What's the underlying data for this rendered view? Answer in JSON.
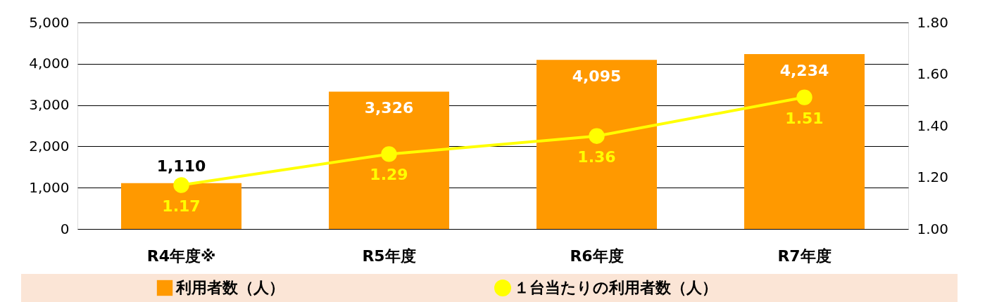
{
  "chart_data": {
    "type": "bar",
    "categories": [
      "R4年度※",
      "R5年度",
      "R6年度",
      "R7年度"
    ],
    "series": [
      {
        "name": "利用者数（人）",
        "color": "#ff9900",
        "values": [
          1110,
          3326,
          4095,
          4234
        ],
        "value_labels": [
          "1,110",
          "3,326",
          "4,095",
          "4,234"
        ]
      },
      {
        "name": "１台当たりの利用者数（人）",
        "type": "line",
        "axis": "y2",
        "color": "#ffff00",
        "values": [
          1.17,
          1.29,
          1.36,
          1.51
        ],
        "value_labels": [
          "1.17",
          "1.29",
          "1.36",
          "1.51"
        ],
        "marker": "circle"
      }
    ],
    "ylim": [
      0,
      5000
    ],
    "yticks": [
      0,
      {
        "value": 1000,
        "label": "1,000"
      },
      {
        "value": 2000,
        "label": "2,000"
      },
      {
        "value": 3000,
        "label": "3,000"
      },
      {
        "value": 4000,
        "label": "4,000"
      },
      {
        "value": 5000,
        "label": "5,000"
      }
    ],
    "y2lim": [
      1.0,
      1.8
    ],
    "y2ticks": [
      {
        "value": 1.0,
        "label": "1.00"
      },
      {
        "value": 1.2,
        "label": "1.20"
      },
      {
        "value": 1.4,
        "label": "1.40"
      },
      {
        "value": 1.6,
        "label": "1.60"
      },
      {
        "value": 1.8,
        "label": "1.80"
      }
    ],
    "grid": "y",
    "legend": "bottom"
  }
}
